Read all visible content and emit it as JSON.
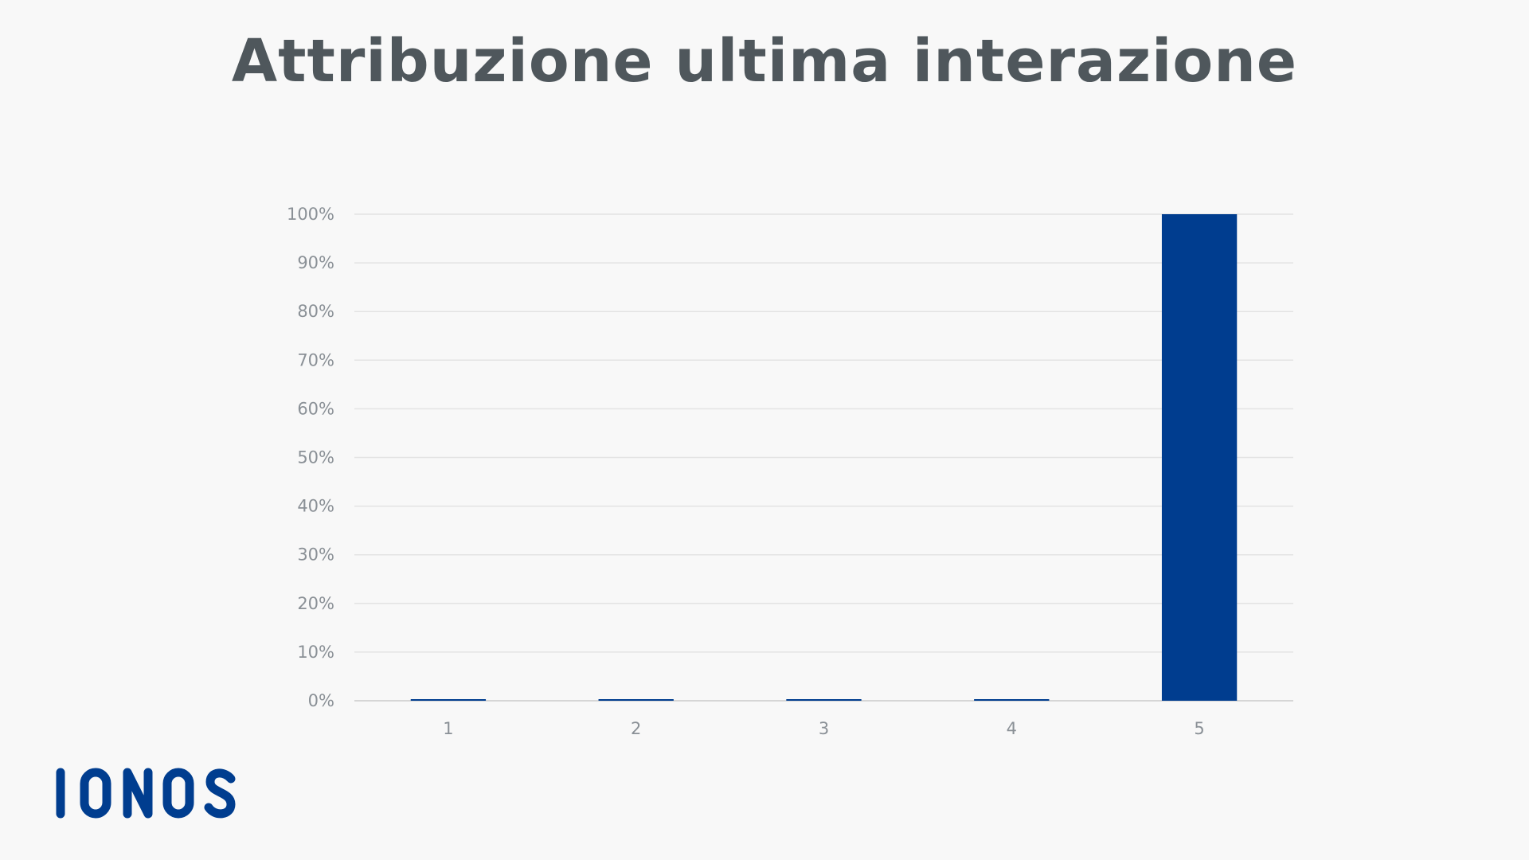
{
  "chart_data": {
    "type": "bar",
    "title": "Attribuzione ultima interazione",
    "categories": [
      "1",
      "2",
      "3",
      "4",
      "5"
    ],
    "values": [
      0,
      0,
      0,
      0,
      100
    ],
    "ylim": [
      0,
      100
    ],
    "yticks": [
      0,
      10,
      20,
      30,
      40,
      50,
      60,
      70,
      80,
      90,
      100
    ],
    "ytick_suffix": "%",
    "xlabel": "",
    "ylabel": "",
    "grid": true,
    "legend": "none",
    "colors": {
      "bar": "#003d8f",
      "grid": "#e3e3e3",
      "axis": "#d6d6d6",
      "title": "#4f575c",
      "ticks": "#8a9096"
    }
  },
  "brand": {
    "logo_text": "IONOS",
    "logo_color": "#003d8f"
  }
}
